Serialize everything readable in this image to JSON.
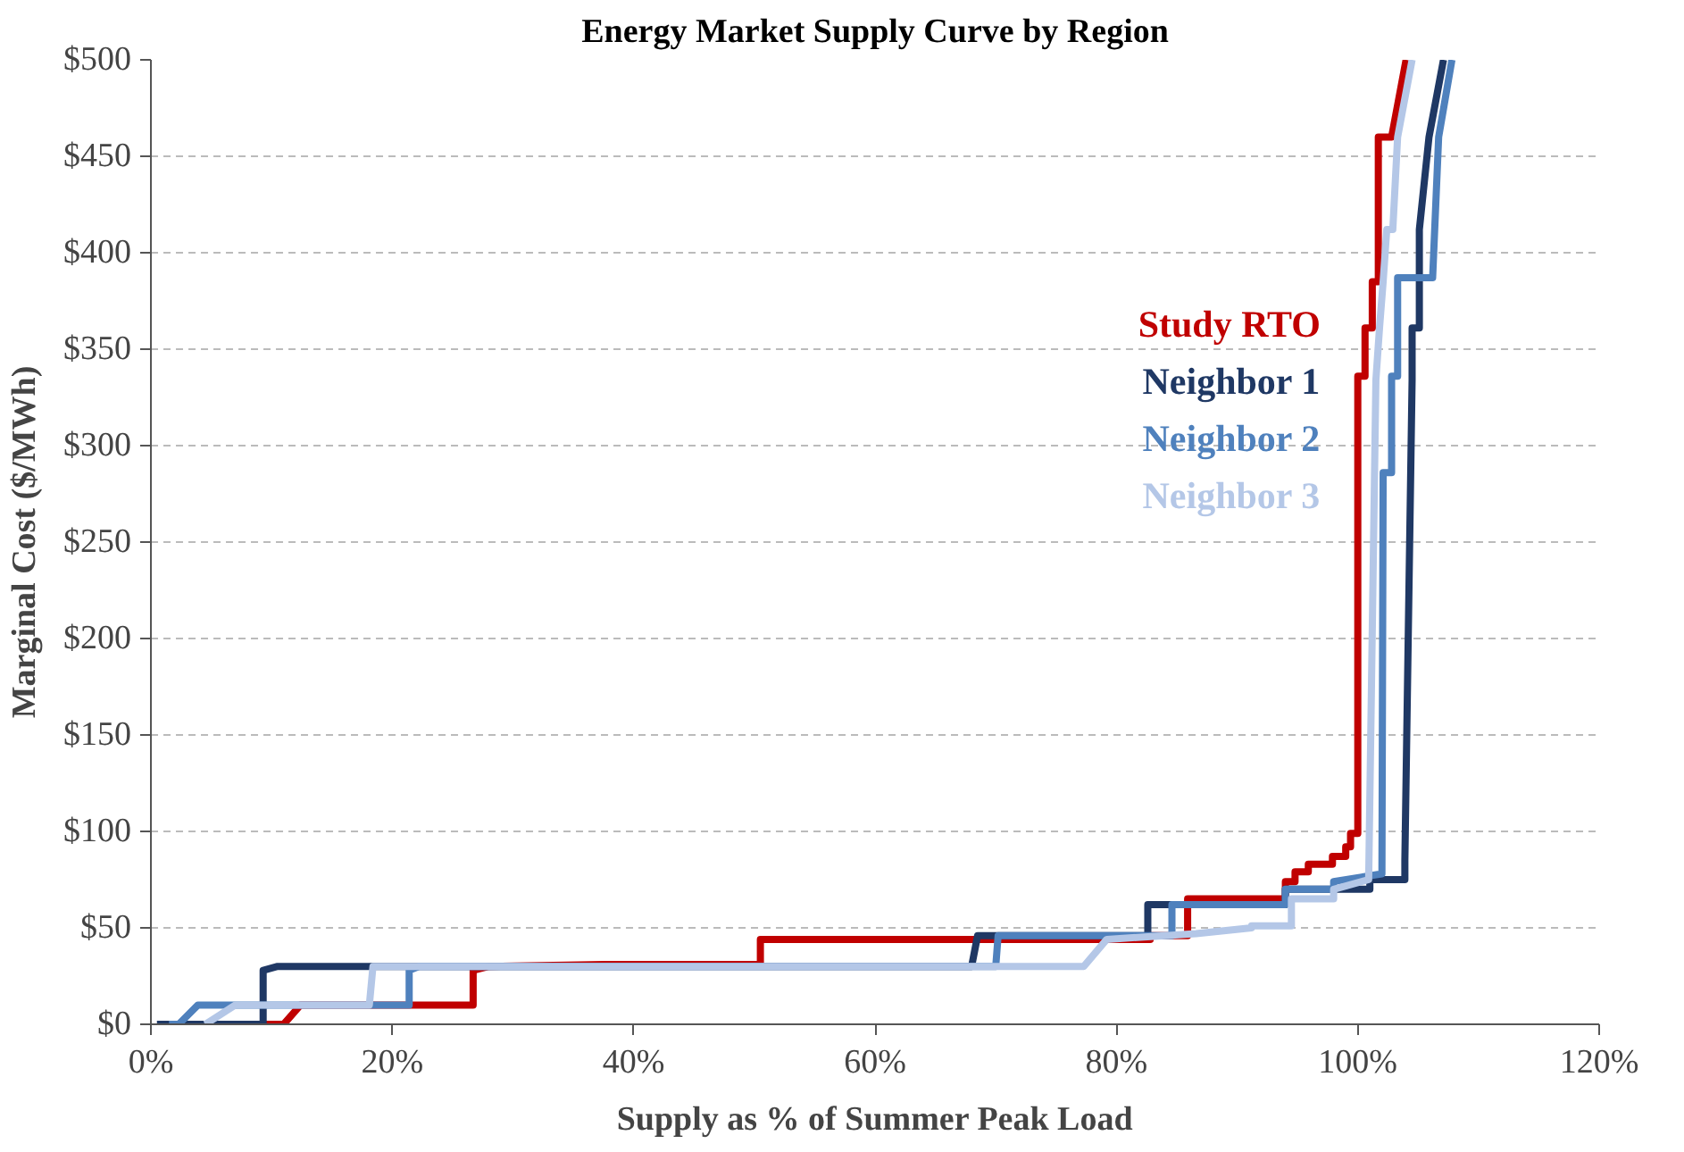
{
  "chart_data": {
    "type": "line",
    "title": "Energy Market Supply Curve by Region",
    "xlabel": "Supply as % of Summer Peak Load",
    "ylabel": "Marginal Cost ($/MWh)",
    "xlim": [
      0,
      120
    ],
    "ylim": [
      0,
      500
    ],
    "xticks": [
      {
        "value": 0,
        "label": "0%"
      },
      {
        "value": 20,
        "label": "20%"
      },
      {
        "value": 40,
        "label": "40%"
      },
      {
        "value": 60,
        "label": "60%"
      },
      {
        "value": 80,
        "label": "80%"
      },
      {
        "value": 100,
        "label": "100%"
      },
      {
        "value": 120,
        "label": "120%"
      }
    ],
    "yticks": [
      {
        "value": 0,
        "label": "$0"
      },
      {
        "value": 50,
        "label": "$50"
      },
      {
        "value": 100,
        "label": "$100"
      },
      {
        "value": 150,
        "label": "$150"
      },
      {
        "value": 200,
        "label": "$200"
      },
      {
        "value": 250,
        "label": "$250"
      },
      {
        "value": 300,
        "label": "$300"
      },
      {
        "value": 350,
        "label": "$350"
      },
      {
        "value": 400,
        "label": "$400"
      },
      {
        "value": 450,
        "label": "$450"
      },
      {
        "value": 500,
        "label": "$500"
      }
    ],
    "grid": "y",
    "legend": "right",
    "line_style": "solid",
    "series": [
      {
        "name": "Study RTO",
        "color": "#c00000",
        "x": [
          3,
          11,
          12.4,
          26.7,
          26.7,
          28,
          37.6,
          50.5,
          50.5,
          82.8,
          82.8,
          85.9,
          85.9,
          94,
          94,
          94.8,
          94.8,
          95.9,
          95.9,
          97.9,
          97.9,
          99,
          99,
          99.4,
          99.4,
          100,
          100,
          100.6,
          100.6,
          101.2,
          101.2,
          101.7,
          101.7,
          102.8,
          104
        ],
        "values": [
          0,
          0,
          10,
          10,
          28,
          30,
          31,
          31,
          44,
          44,
          46,
          46,
          65,
          65,
          74,
          74,
          79,
          79,
          83,
          83,
          87,
          87,
          92,
          92,
          99,
          99,
          336,
          336,
          361,
          361,
          385,
          385,
          460,
          460,
          500
        ]
      },
      {
        "name": "Neighbor 1",
        "color": "#1f3864",
        "x": [
          0.5,
          2,
          9.3,
          9.3,
          10.5,
          68,
          68.5,
          82.6,
          82.6,
          94,
          94,
          101,
          101,
          103.9,
          103.9,
          104.5,
          104.5,
          105.1,
          105.1,
          105.9,
          107.1
        ],
        "values": [
          0,
          0,
          0,
          28,
          30,
          30,
          46,
          46,
          62,
          62,
          70,
          70,
          75,
          75,
          85,
          334,
          361,
          361,
          412,
          460,
          500
        ]
      },
      {
        "name": "Neighbor 2",
        "color": "#4f81bd",
        "x": [
          1.5,
          2.3,
          3.9,
          21.4,
          21.4,
          22.2,
          70,
          70.2,
          84.6,
          84.6,
          94,
          94,
          98,
          98,
          102,
          102.1,
          102.8,
          102.8,
          103.3,
          103.3,
          106.2,
          106.7,
          107.8
        ],
        "values": [
          0,
          0,
          10,
          10,
          28,
          30,
          30,
          46,
          46,
          62,
          62,
          70,
          70,
          74,
          78,
          286,
          286,
          336,
          336,
          387,
          387,
          460,
          500
        ]
      },
      {
        "name": "Neighbor 3",
        "color": "#b4c7e7",
        "x": [
          4.5,
          7,
          18.1,
          18.4,
          77.3,
          79.2,
          86.6,
          91.2,
          91.2,
          94.5,
          94.5,
          98,
          98,
          100.9,
          101.5,
          101.8,
          102.1,
          102.4,
          102.9,
          103.3,
          104.5
        ],
        "values": [
          0,
          10,
          10,
          30,
          30,
          44,
          47,
          50,
          51,
          51,
          65,
          65,
          70,
          75,
          334,
          361,
          385,
          412,
          412,
          460,
          500
        ]
      }
    ]
  }
}
